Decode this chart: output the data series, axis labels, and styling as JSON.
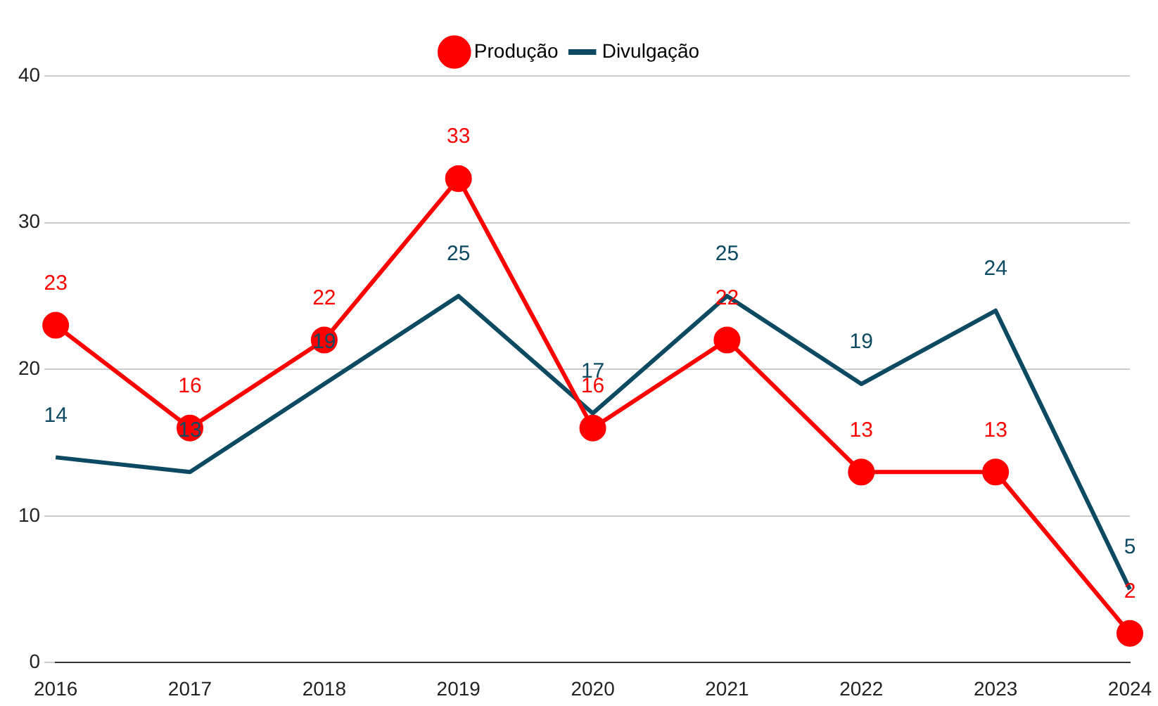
{
  "chart_data": {
    "type": "line",
    "categories": [
      "2016",
      "2017",
      "2018",
      "2019",
      "2020",
      "2021",
      "2022",
      "2023",
      "2024"
    ],
    "series": [
      {
        "name": "Produção",
        "color": "#ff0000",
        "marker": "circle",
        "values": [
          23,
          16,
          22,
          33,
          16,
          22,
          13,
          13,
          2
        ]
      },
      {
        "name": "Divulgação",
        "color": "#0c4a63",
        "marker": "none",
        "values": [
          14,
          13,
          19,
          25,
          17,
          25,
          19,
          24,
          5
        ]
      }
    ],
    "ylim": [
      0,
      40
    ],
    "yticks": [
      0,
      10,
      20,
      30,
      40
    ],
    "grid": "y",
    "legend": "top",
    "data_labels": true
  }
}
